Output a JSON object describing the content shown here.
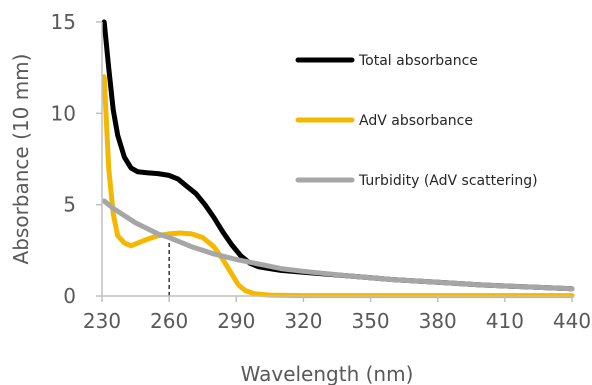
{
  "chart_data": {
    "type": "line",
    "title": "",
    "xlabel": "Wavelength (nm)",
    "ylabel": "Absorbance (10 mm)",
    "xlim": [
      230,
      440
    ],
    "ylim": [
      0,
      15
    ],
    "x_ticks": [
      "230",
      "260",
      "290",
      "320",
      "350",
      "380",
      "410",
      "440"
    ],
    "y_ticks": [
      "0",
      "5",
      "10",
      "15"
    ],
    "grid": false,
    "legend_position": "inside-top-right",
    "reference_line": {
      "x": 260,
      "style": "dashed"
    },
    "series": [
      {
        "name": "Total absorbance",
        "color": "#000000",
        "points": [
          [
            231,
            15.0
          ],
          [
            233,
            12.5
          ],
          [
            235,
            10.2
          ],
          [
            237,
            8.8
          ],
          [
            240,
            7.6
          ],
          [
            243,
            7.0
          ],
          [
            246,
            6.8
          ],
          [
            250,
            6.75
          ],
          [
            255,
            6.7
          ],
          [
            260,
            6.6
          ],
          [
            264,
            6.4
          ],
          [
            268,
            6.0
          ],
          [
            272,
            5.6
          ],
          [
            276,
            5.0
          ],
          [
            280,
            4.3
          ],
          [
            284,
            3.5
          ],
          [
            288,
            2.8
          ],
          [
            292,
            2.2
          ],
          [
            296,
            1.8
          ],
          [
            300,
            1.6
          ],
          [
            305,
            1.5
          ],
          [
            310,
            1.4
          ],
          [
            320,
            1.3
          ],
          [
            340,
            1.1
          ],
          [
            360,
            0.9
          ],
          [
            380,
            0.75
          ],
          [
            400,
            0.6
          ],
          [
            420,
            0.5
          ],
          [
            440,
            0.4
          ]
        ]
      },
      {
        "name": "AdV absorbance",
        "color": "#f5b800",
        "points": [
          [
            231,
            12.0
          ],
          [
            233,
            7.0
          ],
          [
            235,
            4.5
          ],
          [
            237,
            3.3
          ],
          [
            240,
            2.9
          ],
          [
            243,
            2.75
          ],
          [
            246,
            2.9
          ],
          [
            250,
            3.1
          ],
          [
            255,
            3.3
          ],
          [
            260,
            3.4
          ],
          [
            265,
            3.45
          ],
          [
            270,
            3.4
          ],
          [
            275,
            3.2
          ],
          [
            280,
            2.7
          ],
          [
            284,
            2.0
          ],
          [
            288,
            1.2
          ],
          [
            291,
            0.6
          ],
          [
            294,
            0.3
          ],
          [
            298,
            0.12
          ],
          [
            305,
            0.05
          ],
          [
            320,
            0.02
          ],
          [
            360,
            0.02
          ],
          [
            400,
            0.02
          ],
          [
            440,
            0.02
          ]
        ]
      },
      {
        "name": "Turbidity (AdV scattering)",
        "color": "#a6a6a6",
        "points": [
          [
            231,
            5.2
          ],
          [
            235,
            4.8
          ],
          [
            240,
            4.4
          ],
          [
            245,
            4.0
          ],
          [
            250,
            3.7
          ],
          [
            255,
            3.4
          ],
          [
            260,
            3.2
          ],
          [
            265,
            2.95
          ],
          [
            270,
            2.7
          ],
          [
            275,
            2.5
          ],
          [
            280,
            2.3
          ],
          [
            285,
            2.15
          ],
          [
            290,
            2.0
          ],
          [
            300,
            1.75
          ],
          [
            310,
            1.5
          ],
          [
            320,
            1.35
          ],
          [
            340,
            1.1
          ],
          [
            360,
            0.9
          ],
          [
            380,
            0.75
          ],
          [
            400,
            0.6
          ],
          [
            420,
            0.5
          ],
          [
            440,
            0.4
          ]
        ]
      }
    ]
  }
}
